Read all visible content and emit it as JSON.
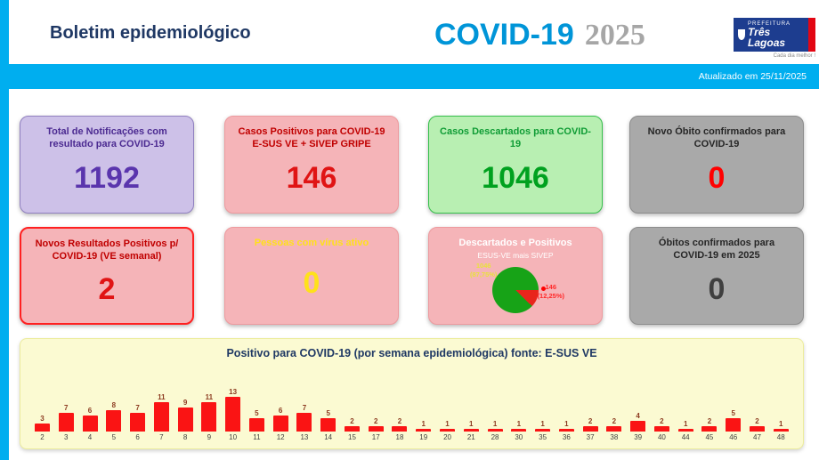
{
  "colors": {
    "accent_cyan": "#00AEEF",
    "navy": "#1F3864",
    "year_gray": "#A6A6A6",
    "logo_blue": "#1D3D8F",
    "logo_red": "#E30613"
  },
  "header": {
    "brand": "Boletim epidemiológico",
    "title": "COVID-19",
    "year": "2025",
    "logo": {
      "line1": "PREFEITURA",
      "line2": "Três Lagoas",
      "tagline": "Cada dia melhor !"
    }
  },
  "update_bar": {
    "text": "Atualizado em 25/11/2025"
  },
  "cards": {
    "row1": [
      {
        "title": "Total de Notificações com resultado para COVID-19",
        "value": "1192"
      },
      {
        "title": "Casos Positivos para COVID-19 E-SUS VE + SIVEP GRIPE",
        "value": "146"
      },
      {
        "title": "Casos Descartados para COVID-19",
        "value": "1046"
      },
      {
        "title": "Novo Óbito confirmados para COVID-19",
        "value": "0"
      }
    ],
    "row2": [
      {
        "title": "Novos Resultados Positivos p/ COVID-19 (VE semanal)",
        "value": "2"
      },
      {
        "title": "Pessoas com vírus ativo",
        "value": "0"
      },
      {
        "title": "Descartados e Positivos",
        "subtitle": "ESUS-VE mais SIVEP"
      },
      {
        "title": "Óbitos confirmados para COVID-19 em 2025",
        "value": "0"
      }
    ]
  },
  "chart_data": [
    {
      "type": "bar",
      "title": "Positivo para COVID-19 (por semana epidemiológica) fonte: E-SUS VE",
      "categories": [
        "2",
        "3",
        "4",
        "5",
        "6",
        "7",
        "8",
        "9",
        "10",
        "11",
        "12",
        "13",
        "14",
        "15",
        "17",
        "18",
        "19",
        "20",
        "21",
        "28",
        "30",
        "35",
        "36",
        "37",
        "38",
        "39",
        "40",
        "44",
        "45",
        "46",
        "47",
        "48"
      ],
      "values": [
        3,
        7,
        6,
        8,
        7,
        11,
        9,
        11,
        13,
        5,
        6,
        7,
        5,
        2,
        2,
        2,
        1,
        1,
        1,
        1,
        1,
        1,
        1,
        2,
        2,
        4,
        2,
        1,
        2,
        5,
        2,
        1
      ],
      "xlabel": "",
      "ylabel": "",
      "ylim": [
        0,
        13
      ],
      "grid": false,
      "legend": "none",
      "bar_color": "#FA1414",
      "value_label_color": "#8C3A20"
    },
    {
      "type": "pie",
      "title": "Descartados e Positivos",
      "subtitle": "ESUS-VE mais SIVEP",
      "values": [
        1046,
        146
      ],
      "colors": [
        "#17A317",
        "#E8251C"
      ],
      "legend": "none",
      "data_labels": [
        {
          "value": "1046",
          "pct": "(87,75%)",
          "color": "#E8E23C"
        },
        {
          "value": "146",
          "pct": "(12,25%)",
          "color": "#FF2A2A"
        }
      ]
    }
  ]
}
